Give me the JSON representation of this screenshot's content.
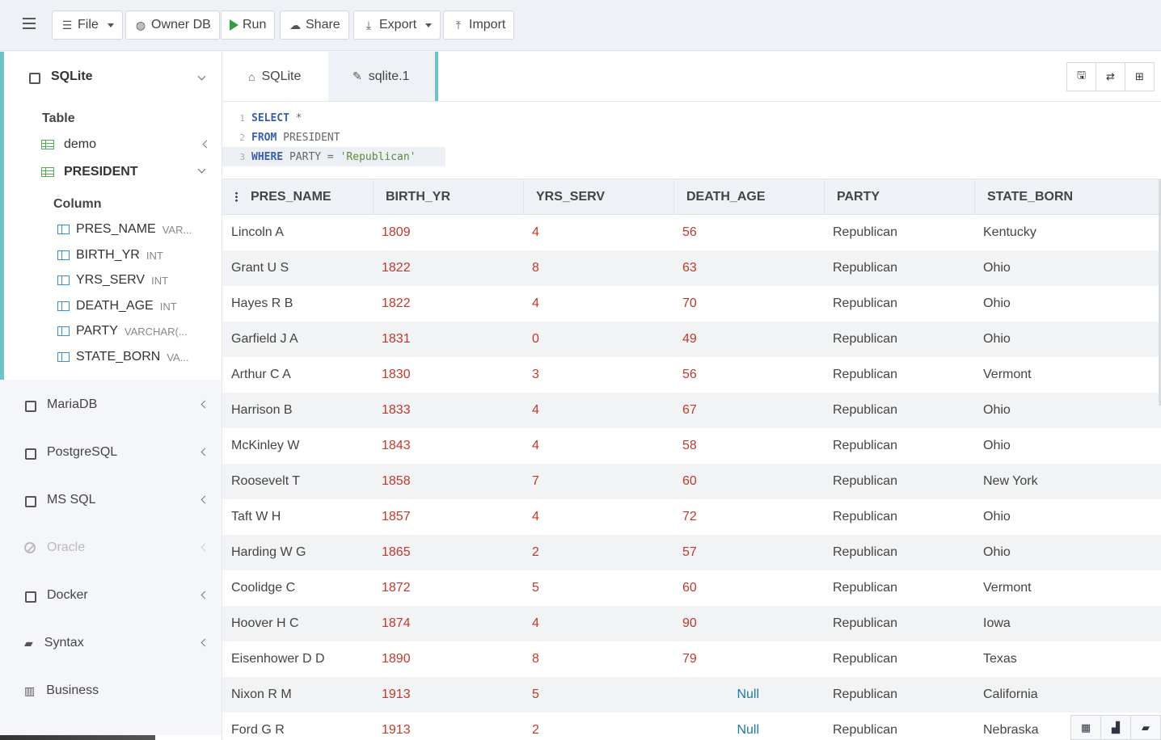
{
  "toolbar": {
    "file": "File",
    "owner_db": "Owner DB",
    "run": "Run",
    "share": "Share",
    "export": "Export",
    "import": "Import"
  },
  "sidebar": {
    "sqlite": {
      "label": "SQLite",
      "table_heading": "Table",
      "tables": [
        "demo",
        "PRESIDENT"
      ],
      "column_heading": "Column",
      "columns": [
        {
          "name": "PRES_NAME",
          "type": "VAR..."
        },
        {
          "name": "BIRTH_YR",
          "type": "INT"
        },
        {
          "name": "YRS_SERV",
          "type": "INT"
        },
        {
          "name": "DEATH_AGE",
          "type": "INT"
        },
        {
          "name": "PARTY",
          "type": "VARCHAR(..."
        },
        {
          "name": "STATE_BORN",
          "type": "VA..."
        }
      ]
    },
    "databases": [
      {
        "label": "MariaDB"
      },
      {
        "label": "PostgreSQL"
      },
      {
        "label": "MS SQL"
      },
      {
        "label": "Oracle"
      },
      {
        "label": "Docker"
      },
      {
        "label": "Syntax"
      },
      {
        "label": "Business"
      }
    ]
  },
  "tabs": [
    {
      "label": "SQLite"
    },
    {
      "label": "sqlite.1"
    }
  ],
  "editor": {
    "lines": [
      {
        "num": "1",
        "kw": "SELECT",
        "rest": " *"
      },
      {
        "num": "2",
        "kw": "FROM",
        "rest": " PRESIDENT"
      },
      {
        "num": "3",
        "kw": "WHERE",
        "rest": " PARTY = ",
        "str": "'Republican'"
      }
    ]
  },
  "results": {
    "columns": [
      "PRES_NAME",
      "BIRTH_YR",
      "YRS_SERV",
      "DEATH_AGE",
      "PARTY",
      "STATE_BORN"
    ],
    "rows": [
      [
        "Lincoln A",
        "1809",
        "4",
        "56",
        "Republican",
        "Kentucky"
      ],
      [
        "Grant U S",
        "1822",
        "8",
        "63",
        "Republican",
        "Ohio"
      ],
      [
        "Hayes R B",
        "1822",
        "4",
        "70",
        "Republican",
        "Ohio"
      ],
      [
        "Garfield J A",
        "1831",
        "0",
        "49",
        "Republican",
        "Ohio"
      ],
      [
        "Arthur C A",
        "1830",
        "3",
        "56",
        "Republican",
        "Vermont"
      ],
      [
        "Harrison B",
        "1833",
        "4",
        "67",
        "Republican",
        "Ohio"
      ],
      [
        "McKinley W",
        "1843",
        "4",
        "58",
        "Republican",
        "Ohio"
      ],
      [
        "Roosevelt T",
        "1858",
        "7",
        "60",
        "Republican",
        "New York"
      ],
      [
        "Taft W H",
        "1857",
        "4",
        "72",
        "Republican",
        "Ohio"
      ],
      [
        "Harding W G",
        "1865",
        "2",
        "57",
        "Republican",
        "Ohio"
      ],
      [
        "Coolidge C",
        "1872",
        "5",
        "60",
        "Republican",
        "Vermont"
      ],
      [
        "Hoover H C",
        "1874",
        "4",
        "90",
        "Republican",
        "Iowa"
      ],
      [
        "Eisenhower D D",
        "1890",
        "8",
        "79",
        "Republican",
        "Texas"
      ],
      [
        "Nixon R M",
        "1913",
        "5",
        "Null",
        "Republican",
        "California"
      ],
      [
        "Ford G R",
        "1913",
        "2",
        "Null",
        "Republican",
        "Nebraska"
      ]
    ]
  },
  "colors": {
    "accent": "#6fc2c9",
    "number": "#c0392b",
    "null": "#1f7a96",
    "keyword": "#3a5fa8"
  }
}
